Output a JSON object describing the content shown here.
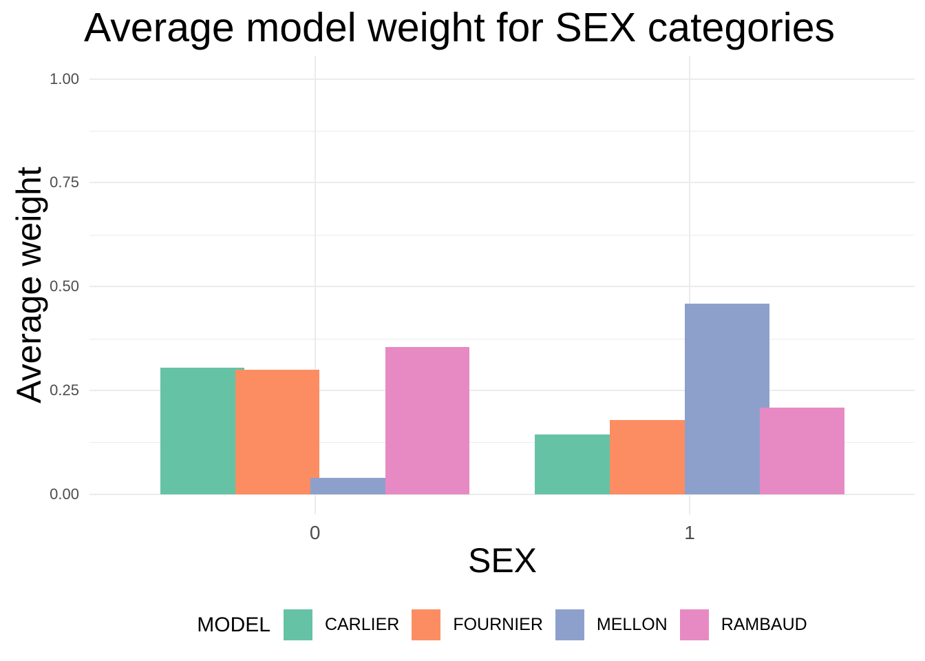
{
  "chart_data": {
    "type": "bar",
    "title": "Average model weight for SEX categories",
    "xlabel": "SEX",
    "ylabel": "Average weight",
    "categories": [
      "0",
      "1"
    ],
    "series": [
      {
        "name": "CARLIER",
        "color": "#66C2A5",
        "values": [
          0.305,
          0.145
        ]
      },
      {
        "name": "FOURNIER",
        "color": "#FC8D62",
        "values": [
          0.3,
          0.18
        ]
      },
      {
        "name": "MELLON",
        "color": "#8DA0CB",
        "values": [
          0.04,
          0.46
        ]
      },
      {
        "name": "RAMBAUD",
        "color": "#E78AC3",
        "values": [
          0.355,
          0.21
        ]
      }
    ],
    "ylim": [
      0,
      1
    ],
    "y_major_ticks": [
      0,
      0.25,
      0.5,
      0.75,
      1
    ],
    "y_tick_labels": [
      "0.00",
      "0.25",
      "0.50",
      "0.75",
      "1.00"
    ],
    "y_minor_ticks": [
      0.125,
      0.375,
      0.625,
      0.875
    ],
    "legend_title": "MODEL",
    "legend_position": "bottom",
    "grid": true,
    "colors": {
      "background": "#FFFFFF",
      "gridline": "#EBEBEB",
      "tick_text": "#4D4D4D",
      "title_text": "#000000"
    }
  }
}
